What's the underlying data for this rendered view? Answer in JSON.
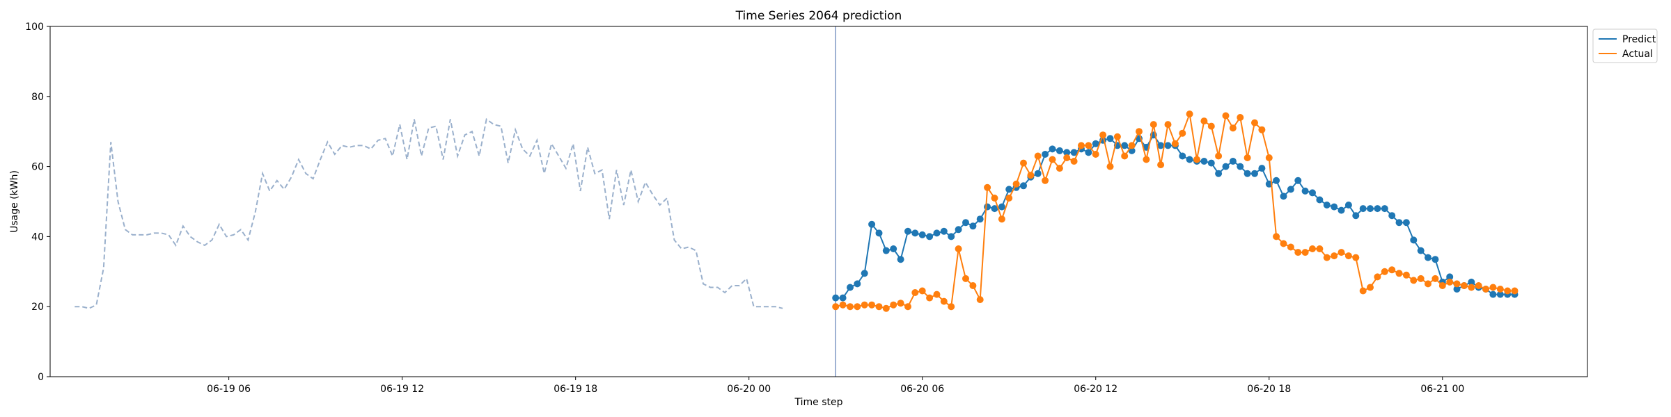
{
  "chart_data": {
    "type": "line",
    "title": "Time Series 2064 prediction",
    "xlabel": "Time step",
    "ylabel": "Usage (kWh)",
    "ylim": [
      0,
      100
    ],
    "yticks": [
      "0",
      "20",
      "40",
      "60",
      "80",
      "100"
    ],
    "xticks": [
      {
        "hour": 6,
        "label": "06-19 06"
      },
      {
        "hour": 12,
        "label": "06-19 12"
      },
      {
        "hour": 18,
        "label": "06-19 18"
      },
      {
        "hour": 24,
        "label": "06-20 00"
      },
      {
        "hour": 30,
        "label": "06-20 06"
      },
      {
        "hour": 36,
        "label": "06-20 12"
      },
      {
        "hour": 42,
        "label": "06-20 18"
      },
      {
        "hour": 48,
        "label": "06-21 00"
      }
    ],
    "x_start": "06-19 00:40",
    "x_end": "06-21 04:10",
    "x_step_minutes": 15,
    "forecast_start": "06-20 03:00",
    "grid": false,
    "legend_position": "top-right",
    "history": {
      "start": "06-19 00:40",
      "color": "#9ab0cc",
      "style": "dashed",
      "values": [
        20,
        20,
        19.5,
        20.5,
        31,
        67,
        50,
        42,
        40.5,
        40.5,
        40.5,
        41,
        41,
        40.5,
        37.5,
        43,
        40,
        38.5,
        37.5,
        39,
        43.5,
        40,
        40.5,
        42,
        39,
        47,
        58,
        53,
        56,
        53.5,
        57,
        62,
        58,
        56.5,
        62,
        67,
        63.5,
        66,
        65.5,
        66,
        66,
        65,
        67.5,
        68,
        63,
        72,
        62,
        73.5,
        63,
        71,
        71.5,
        62,
        73.5,
        63,
        69,
        70,
        63,
        73.5,
        72,
        71.5,
        61,
        70.5,
        65,
        63,
        67.5,
        58,
        66.5,
        63,
        59.5,
        66.5,
        53,
        65.5,
        58,
        59,
        45,
        59,
        49,
        59,
        50,
        55.5,
        52,
        49,
        51,
        39,
        36.5,
        37,
        36,
        26.5,
        25.5,
        25.5,
        24,
        26,
        26,
        28,
        20,
        20,
        20,
        20,
        19.5
      ]
    },
    "series": [
      {
        "name": "Predict",
        "color": "#1f77b4",
        "start": "06-20 03:00",
        "values": [
          22.5,
          22.5,
          25.5,
          26.5,
          29.5,
          43.5,
          41,
          36,
          36.5,
          33.5,
          41.5,
          41,
          40.5,
          40,
          41,
          41.5,
          40,
          42,
          44,
          43,
          45,
          48.5,
          48,
          48.5,
          53.5,
          54,
          54.5,
          57,
          58,
          63.5,
          65,
          64.5,
          64,
          64,
          65,
          64,
          66.5,
          67.5,
          68,
          66,
          66,
          64.5,
          68,
          65.5,
          69,
          66,
          66,
          66,
          63,
          62,
          61.5,
          61.5,
          61,
          58,
          60,
          61.5,
          60,
          58,
          58,
          59.5,
          55,
          56,
          51.5,
          53.5,
          56,
          53,
          52.5,
          50.5,
          49,
          48.5,
          47.5,
          49,
          46,
          48,
          48,
          48,
          48,
          46,
          44,
          44,
          39,
          36,
          34,
          33.5,
          27,
          28.5,
          25,
          26,
          27,
          25.5,
          25,
          23.5,
          23.5,
          23.5,
          23.5
        ]
      },
      {
        "name": "Actual",
        "color": "#ff7f0e",
        "start": "06-20 03:00",
        "values": [
          20,
          20.5,
          20,
          20,
          20.5,
          20.5,
          20,
          19.5,
          20.5,
          21,
          20,
          24,
          24.5,
          22.5,
          23.5,
          21.5,
          20,
          36.5,
          28,
          26,
          22,
          54,
          51,
          45,
          51,
          55,
          61,
          57.5,
          63,
          56,
          62,
          59.5,
          62.5,
          61.5,
          66,
          66,
          63.5,
          69,
          60,
          68.5,
          63,
          66,
          70,
          62,
          72,
          60.5,
          72,
          66.5,
          69.5,
          75,
          62,
          73,
          71.5,
          63,
          74.5,
          71,
          74,
          62.5,
          72.5,
          70.5,
          62.5,
          40,
          38,
          37,
          35.5,
          35.5,
          36.5,
          36.5,
          34,
          34.5,
          35.5,
          34.5,
          34,
          24.5,
          25.5,
          28.5,
          30,
          30.5,
          29.5,
          29,
          27.5,
          28,
          26.5,
          28,
          26,
          27,
          26.5,
          26,
          25.5,
          26,
          25,
          25.5,
          25,
          24.5,
          24.5
        ]
      }
    ]
  }
}
